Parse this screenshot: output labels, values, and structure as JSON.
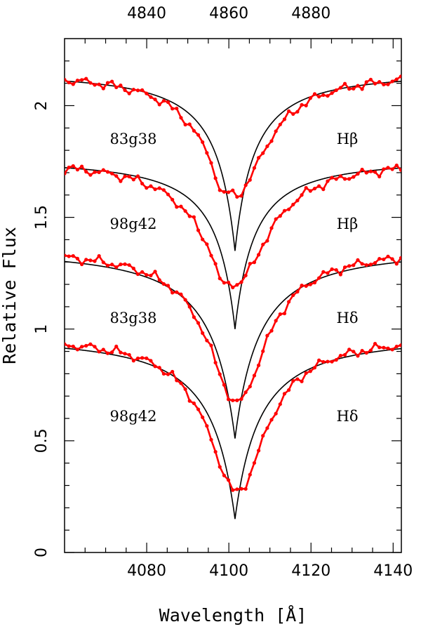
{
  "chart_data": {
    "type": "line",
    "xlabel": "Wavelength [Å]",
    "ylabel": "Relative Flux",
    "xlim": [
      4060,
      4142
    ],
    "ylim": [
      0,
      2.3
    ],
    "x_ticks": [
      4080,
      4100,
      4120,
      4140
    ],
    "y_ticks": [
      0,
      0.5,
      1,
      1.5,
      2
    ],
    "y_tick_labels": [
      "0",
      "0.5",
      "1",
      "1.5",
      "2"
    ],
    "top_xlim": [
      4820,
      4902
    ],
    "top_x_ticks": [
      4840,
      4860,
      4880
    ],
    "grid": false,
    "profiles": [
      {
        "star": "83g38",
        "line": "Hβ",
        "continuum": 2.15,
        "model_min": 1.35,
        "model_width": 7.5,
        "data_min": 1.6,
        "data_width": 8.5,
        "data_center": 4101.5,
        "feature_depth": 0.06,
        "label_y": 1.85
      },
      {
        "star": "98g42",
        "line": "Hβ",
        "continuum": 1.76,
        "model_min": 1.0,
        "model_width": 7.5,
        "data_min": 1.2,
        "data_width": 9.0,
        "data_center": 4101.5,
        "feature_depth": 0.06,
        "label_y": 1.47
      },
      {
        "star": "83g38",
        "line": "Hδ",
        "continuum": 1.36,
        "model_min": 0.51,
        "model_width": 9.5,
        "data_min": 0.67,
        "data_width": 8.0,
        "data_center": 4102.0,
        "feature_depth": 0.0,
        "label_y": 1.05
      },
      {
        "star": "98g42",
        "line": "Hδ",
        "continuum": 0.97,
        "model_min": 0.15,
        "model_width": 9.5,
        "data_min": 0.27,
        "data_width": 8.0,
        "data_center": 4102.0,
        "feature_depth": 0.0,
        "label_y": 0.61
      }
    ],
    "series": [
      {
        "name": "model",
        "color": "#000000"
      },
      {
        "name": "observed",
        "color": "#ff0000"
      }
    ]
  }
}
